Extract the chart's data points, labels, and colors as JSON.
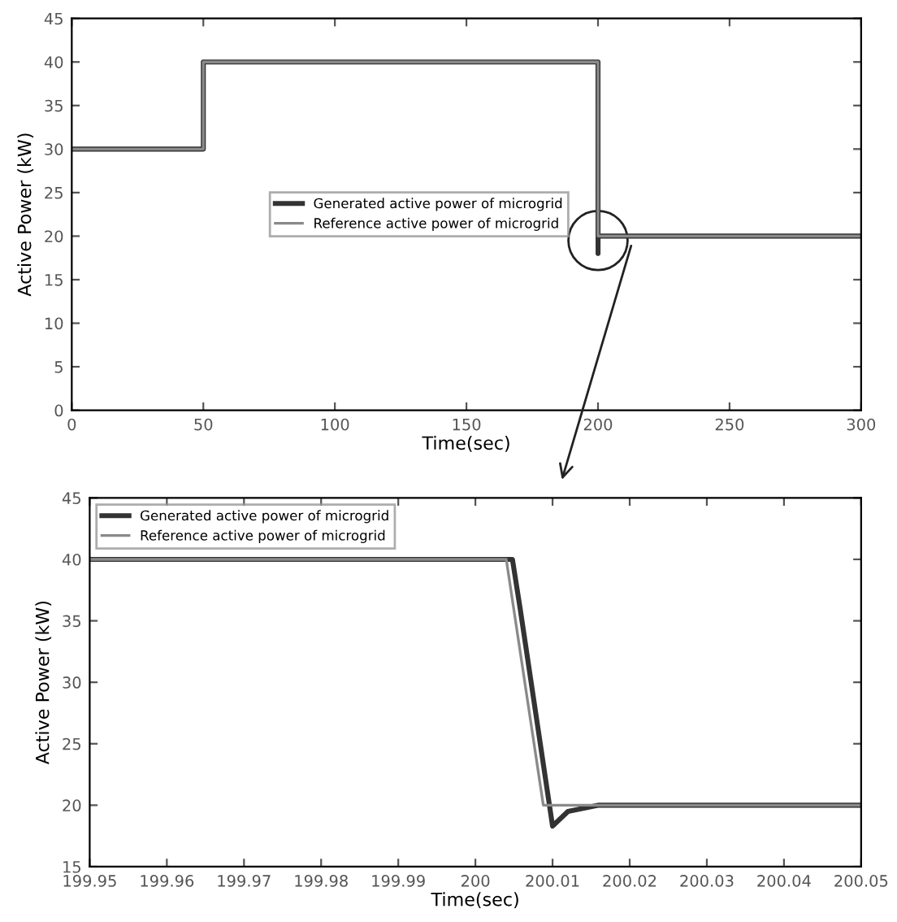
{
  "chart_data": [
    {
      "type": "line",
      "xlabel": "Time(sec)",
      "ylabel": "Active Power (kW)",
      "xlim": [
        0,
        300
      ],
      "xticks": [
        0,
        50,
        100,
        150,
        200,
        250,
        300
      ],
      "ylim": [
        0,
        45
      ],
      "yticks": [
        0,
        5,
        10,
        15,
        20,
        25,
        30,
        35,
        40,
        45
      ],
      "grid": false,
      "legend": "center",
      "series": [
        {
          "name": "Generated active power of microgrid",
          "color": "#333333",
          "x": [
            0,
            50,
            50,
            200,
            200.01,
            200.02,
            300
          ],
          "values": [
            30,
            30,
            40,
            40,
            18,
            20,
            20
          ]
        },
        {
          "name": "Reference active power of microgrid",
          "color": "#8a8a8a",
          "x": [
            0,
            50,
            50,
            200,
            200.01,
            300
          ],
          "values": [
            30,
            30,
            40,
            40,
            20,
            20
          ]
        }
      ]
    },
    {
      "type": "line",
      "xlabel": "Time(sec)",
      "ylabel": "Active Power (kW)",
      "xlim": [
        199.95,
        200.05
      ],
      "xticks": [
        199.95,
        199.96,
        199.97,
        199.98,
        199.99,
        {
          "value": 200,
          "label": "200"
        },
        200.01,
        200.02,
        200.03,
        200.04,
        200.05
      ],
      "ylim": [
        15,
        45
      ],
      "yticks": [
        15,
        20,
        25,
        30,
        35,
        40,
        45
      ],
      "grid": false,
      "legend": "top left",
      "series": [
        {
          "name": "Generated active power of microgrid",
          "color": "#333333",
          "x": [
            199.95,
            200.0048,
            200.0058,
            200.01,
            200.012,
            200.016,
            200.05
          ],
          "values": [
            40,
            40,
            36,
            18.3,
            19.5,
            20,
            20
          ]
        },
        {
          "name": "Reference active power of microgrid",
          "color": "#8a8a8a",
          "x": [
            199.95,
            200.004,
            200.0088,
            200.05
          ],
          "values": [
            40,
            40,
            20,
            20
          ]
        }
      ]
    }
  ]
}
